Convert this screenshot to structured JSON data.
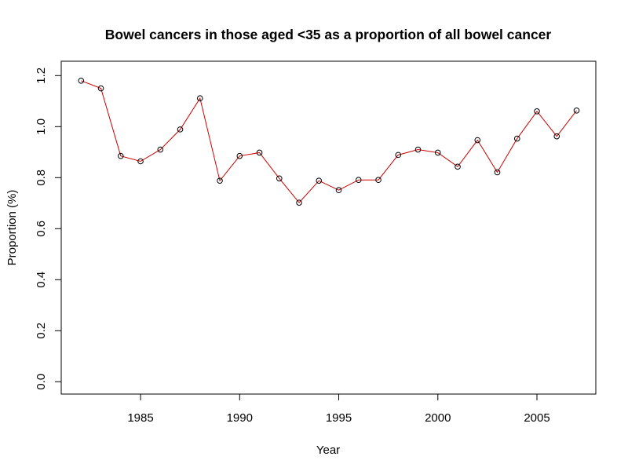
{
  "chart_data": {
    "type": "line",
    "title": "Bowel cancers in those aged <35 as a proportion of all bowel cancer",
    "xlabel": "Year",
    "ylabel": "Proportion (%)",
    "xlim": [
      1982,
      2007
    ],
    "ylim": [
      0.0,
      1.2
    ],
    "x_ticks": [
      1985,
      1990,
      1995,
      2000,
      2005
    ],
    "y_ticks": [
      "0.0",
      "0.2",
      "0.4",
      "0.6",
      "0.8",
      "1.0",
      "1.2"
    ],
    "grid": false,
    "line_color": "#cc0000",
    "point_color": "#000000",
    "series": [
      {
        "name": "Proportion",
        "x": [
          1982,
          1983,
          1984,
          1985,
          1986,
          1987,
          1988,
          1989,
          1990,
          1991,
          1992,
          1993,
          1994,
          1995,
          1996,
          1997,
          1998,
          1999,
          2000,
          2001,
          2002,
          2003,
          2004,
          2005,
          2006,
          2007
        ],
        "values": [
          1.18,
          1.15,
          0.885,
          0.864,
          0.91,
          0.989,
          1.111,
          0.788,
          0.885,
          0.898,
          0.797,
          0.702,
          0.788,
          0.751,
          0.791,
          0.791,
          0.889,
          0.91,
          0.898,
          0.843,
          0.947,
          0.821,
          0.953,
          1.06,
          0.962,
          1.063
        ]
      }
    ]
  }
}
